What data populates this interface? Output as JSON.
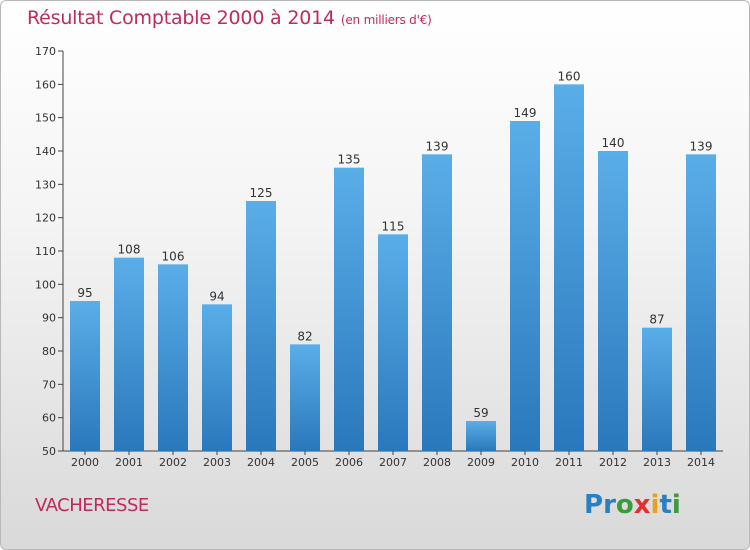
{
  "title": "Résultat Comptable 2000 à 2014",
  "subtitle": "(en milliers d'€)",
  "location": "VACHERESSE",
  "logo": {
    "letters": [
      "P",
      "r",
      "o",
      "x",
      "i",
      "t",
      "i"
    ],
    "colors": [
      "#2a7fc0",
      "#2a7fc0",
      "#3a9b3a",
      "#e03030",
      "#e8a020",
      "#2a7fc0",
      "#3a9b3a"
    ]
  },
  "colors": {
    "bar": "#3a8fd0",
    "title": "#c02a5c",
    "axis": "#444444"
  },
  "chart_data": {
    "type": "bar",
    "title": "Résultat Comptable 2000 à 2014",
    "subtitle": "(en milliers d'€)",
    "categories": [
      "2000",
      "2001",
      "2002",
      "2003",
      "2004",
      "2005",
      "2006",
      "2007",
      "2008",
      "2009",
      "2010",
      "2011",
      "2012",
      "2013",
      "2014"
    ],
    "values": [
      95,
      108,
      106,
      94,
      125,
      82,
      135,
      115,
      139,
      59,
      149,
      160,
      140,
      87,
      139
    ],
    "ylim": [
      50,
      170
    ],
    "yticks": [
      50,
      60,
      70,
      80,
      90,
      100,
      110,
      120,
      130,
      140,
      150,
      160,
      170
    ],
    "xlabel": "",
    "ylabel": "",
    "grid": false,
    "show_data_labels": true
  }
}
